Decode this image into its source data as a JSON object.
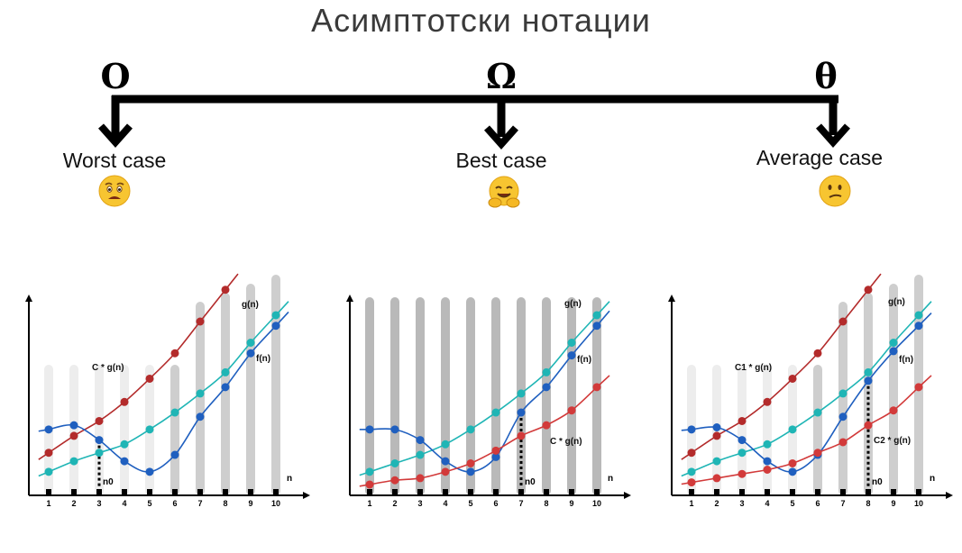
{
  "title": "Асимптотски нотации",
  "notations": [
    {
      "symbol": "O",
      "label": "Worst case",
      "emoji": "anxious-face-icon"
    },
    {
      "symbol": "Ω",
      "label": "Best case",
      "emoji": "hugging-face-icon"
    },
    {
      "symbol": "θ",
      "label": "Average case",
      "emoji": "confused-face-icon"
    }
  ],
  "chart_data": [
    {
      "type": "line",
      "x": [
        1,
        2,
        3,
        4,
        5,
        6,
        7,
        8,
        9,
        10
      ],
      "xlabel": "n",
      "n0": 3,
      "n0_label": "n0",
      "series": [
        {
          "name": "C * g(n)",
          "color": "#b32b2b",
          "values": [
            1.8,
            2.6,
            3.3,
            4.2,
            5.3,
            6.5,
            8.0,
            9.5,
            null,
            null
          ]
        },
        {
          "name": "g(n)",
          "color": "#1fb5b5",
          "values": [
            0.9,
            1.4,
            1.8,
            2.2,
            2.9,
            3.7,
            4.6,
            5.6,
            7.0,
            8.3
          ]
        },
        {
          "name": "f(n)",
          "color": "#1f5fbf",
          "values": [
            2.9,
            3.1,
            2.4,
            1.4,
            0.9,
            1.7,
            3.5,
            4.9,
            6.5,
            7.8
          ]
        }
      ]
    },
    {
      "type": "line",
      "x": [
        1,
        2,
        3,
        4,
        5,
        6,
        7,
        8,
        9,
        10
      ],
      "xlabel": "n",
      "n0": 7,
      "n0_label": "n0",
      "series": [
        {
          "name": "g(n)",
          "color": "#1fb5b5",
          "values": [
            0.9,
            1.3,
            1.7,
            2.2,
            2.9,
            3.7,
            4.6,
            5.6,
            7.0,
            8.3
          ]
        },
        {
          "name": "f(n)",
          "color": "#1f5fbf",
          "values": [
            2.9,
            2.9,
            2.4,
            1.4,
            0.9,
            1.6,
            3.7,
            4.9,
            6.4,
            7.8
          ]
        },
        {
          "name": "C * g(n)",
          "color": "#d23a3a",
          "values": [
            0.3,
            0.5,
            0.6,
            0.9,
            1.3,
            1.9,
            2.6,
            3.1,
            3.8,
            4.9
          ]
        }
      ]
    },
    {
      "type": "line",
      "x": [
        1,
        2,
        3,
        4,
        5,
        6,
        7,
        8,
        9,
        10
      ],
      "xlabel": "n",
      "n0": 8,
      "n0_label": "n0",
      "series": [
        {
          "name": "C1 * g(n)",
          "color": "#b32b2b",
          "values": [
            1.8,
            2.6,
            3.3,
            4.2,
            5.3,
            6.5,
            8.0,
            9.5,
            null,
            null
          ]
        },
        {
          "name": "g(n)",
          "color": "#1fb5b5",
          "values": [
            0.9,
            1.4,
            1.8,
            2.2,
            2.9,
            3.7,
            4.6,
            5.6,
            7.0,
            8.3
          ]
        },
        {
          "name": "f(n)",
          "color": "#1f5fbf",
          "values": [
            2.9,
            3.0,
            2.4,
            1.4,
            0.9,
            1.7,
            3.5,
            5.2,
            6.6,
            7.8
          ]
        },
        {
          "name": "C2 * g(n)",
          "color": "#d23a3a",
          "values": [
            0.4,
            0.6,
            0.8,
            1.0,
            1.3,
            1.8,
            2.3,
            3.1,
            3.8,
            4.9
          ]
        }
      ]
    }
  ]
}
